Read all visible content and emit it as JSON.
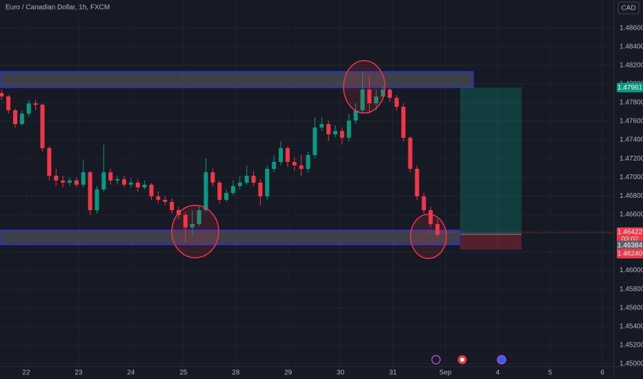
{
  "header": {
    "title": "Euro / Canadian Dollar, 1h, FXCM",
    "currency": "CAD"
  },
  "price_labels": {
    "target": "1.47961",
    "current": "1.46422",
    "countdown": "03:02",
    "bid": "1.46384",
    "stop": "1.46240"
  },
  "chart_data": {
    "type": "candlestick",
    "up_color": "#089981",
    "down_color": "#f23645",
    "grid": true,
    "x": [
      -0.47,
      -0.34,
      -0.21,
      -0.08,
      0.05,
      0.18,
      0.31,
      0.44,
      0.57,
      0.7,
      0.83,
      0.96,
      1.09,
      1.22,
      1.35,
      1.48,
      1.61,
      1.74,
      1.87,
      2,
      2.13,
      2.26,
      2.39,
      2.52,
      2.65,
      2.78,
      2.91,
      3.04,
      3.17,
      3.3,
      3.43,
      3.56,
      3.69,
      3.82,
      3.95,
      4.08,
      4.21,
      4.34,
      4.47,
      4.6,
      4.73,
      4.86,
      4.99,
      5.12,
      5.25,
      5.38,
      5.51,
      5.64,
      5.77,
      5.9,
      6.03,
      6.16,
      6.29,
      6.42,
      6.55,
      6.68,
      6.81,
      6.94,
      7.07,
      7.2,
      7.33,
      7.46,
      7.59,
      7.72,
      7.85
    ],
    "open": [
      1.47903,
      1.47866,
      1.47718,
      1.4757,
      1.47681,
      1.47792,
      1.47777,
      1.47312,
      1.47016,
      1.46965,
      1.46942,
      1.46965,
      1.4692,
      1.47053,
      1.46647,
      1.46869,
      1.47053,
      1.46965,
      1.46979,
      1.4692,
      1.46942,
      1.46891,
      1.4692,
      1.46795,
      1.46758,
      1.46736,
      1.46647,
      1.46595,
      1.46462,
      1.46499,
      1.46647,
      1.47053,
      1.46942,
      1.46758,
      1.46832,
      1.46906,
      1.46942,
      1.47016,
      1.46942,
      1.46795,
      1.4709,
      1.47164,
      1.47312,
      1.47164,
      1.47127,
      1.4709,
      1.47238,
      1.47533,
      1.4757,
      1.4746,
      1.47496,
      1.47423,
      1.47607,
      1.47718,
      1.4794,
      1.47792,
      1.47866,
      1.4794,
      1.47851,
      1.47755,
      1.47423,
      1.4709,
      1.46795,
      1.46647,
      1.46499
    ],
    "high": [
      1.4794,
      1.47881,
      1.47733,
      1.47718,
      1.47829,
      1.47829,
      1.47792,
      1.47334,
      1.4709,
      1.47016,
      1.46994,
      1.46994,
      1.47186,
      1.47068,
      1.46906,
      1.47349,
      1.4709,
      1.47016,
      1.47016,
      1.46994,
      1.46979,
      1.46965,
      1.46942,
      1.46846,
      1.46795,
      1.46773,
      1.46684,
      1.46625,
      1.46647,
      1.46699,
      1.47201,
      1.4709,
      1.46965,
      1.46869,
      1.46965,
      1.47016,
      1.47127,
      1.47068,
      1.46979,
      1.47127,
      1.47238,
      1.47386,
      1.47334,
      1.47216,
      1.47238,
      1.47275,
      1.47644,
      1.47644,
      1.47607,
      1.47556,
      1.47533,
      1.47681,
      1.47792,
      1.48124,
      1.48087,
      1.4794,
      1.47977,
      1.47954,
      1.47881,
      1.47792,
      1.47437,
      1.47127,
      1.46832,
      1.46684,
      1.46551
    ],
    "low": [
      1.47829,
      1.47681,
      1.47533,
      1.47556,
      1.47644,
      1.47718,
      1.47275,
      1.46965,
      1.46906,
      1.46891,
      1.46906,
      1.46891,
      1.46891,
      1.46595,
      1.4661,
      1.46846,
      1.4692,
      1.4692,
      1.46891,
      1.46891,
      1.46846,
      1.46869,
      1.46758,
      1.46721,
      1.46699,
      1.4661,
      1.46551,
      1.463,
      1.46366,
      1.46477,
      1.46625,
      1.46906,
      1.46721,
      1.46736,
      1.4681,
      1.46869,
      1.4692,
      1.46906,
      1.46699,
      1.46758,
      1.47053,
      1.47127,
      1.47112,
      1.47068,
      1.47016,
      1.47053,
      1.47201,
      1.47496,
      1.47386,
      1.47423,
      1.47349,
      1.47386,
      1.4757,
      1.47681,
      1.47681,
      1.47718,
      1.47829,
      1.47807,
      1.47718,
      1.47386,
      1.47053,
      1.46758,
      1.4661,
      1.46462,
      1.46366
    ],
    "close": [
      1.47866,
      1.47718,
      1.4757,
      1.47681,
      1.47792,
      1.47777,
      1.47312,
      1.47016,
      1.46965,
      1.46942,
      1.46965,
      1.4692,
      1.47053,
      1.46647,
      1.46869,
      1.47053,
      1.46965,
      1.46979,
      1.4692,
      1.46942,
      1.46891,
      1.4692,
      1.46795,
      1.46758,
      1.46736,
      1.46647,
      1.46595,
      1.46462,
      1.46499,
      1.46647,
      1.47053,
      1.46942,
      1.46758,
      1.46832,
      1.46906,
      1.46942,
      1.47016,
      1.46942,
      1.46795,
      1.4709,
      1.47164,
      1.47312,
      1.47164,
      1.47127,
      1.4709,
      1.47238,
      1.47533,
      1.4757,
      1.4746,
      1.47496,
      1.47423,
      1.47607,
      1.47718,
      1.4794,
      1.47792,
      1.47866,
      1.4794,
      1.47851,
      1.47755,
      1.47423,
      1.4709,
      1.46795,
      1.46647,
      1.46499,
      1.46384
    ],
    "ylim": [
      1.4497,
      1.489
    ],
    "yticks": [
      {
        "value": 1.45,
        "label": "1.45000"
      },
      {
        "value": 1.452,
        "label": "1.45200"
      },
      {
        "value": 1.454,
        "label": "1.45400"
      },
      {
        "value": 1.456,
        "label": "1.45600"
      },
      {
        "value": 1.458,
        "label": "1.45800"
      },
      {
        "value": 1.46,
        "label": "1.46000"
      },
      {
        "value": 1.462,
        "label": "1.46200"
      },
      {
        "value": 1.464,
        "label": "1.46400"
      },
      {
        "value": 1.466,
        "label": "1.46600"
      },
      {
        "value": 1.468,
        "label": "1.46800"
      },
      {
        "value": 1.47,
        "label": "1.47000"
      },
      {
        "value": 1.472,
        "label": "1.47200"
      },
      {
        "value": 1.474,
        "label": "1.47400"
      },
      {
        "value": 1.476,
        "label": "1.47600"
      },
      {
        "value": 1.478,
        "label": "1.47800"
      },
      {
        "value": 1.48,
        "label": "1.48000"
      },
      {
        "value": 1.482,
        "label": "1.48200"
      },
      {
        "value": 1.484,
        "label": "1.48400"
      },
      {
        "value": 1.486,
        "label": "1.48600"
      }
    ],
    "xlim": [
      -0.5,
      11.22
    ],
    "xticks": [
      {
        "value": 0,
        "label": "22"
      },
      {
        "value": 1,
        "label": "23"
      },
      {
        "value": 2,
        "label": "24"
      },
      {
        "value": 3,
        "label": "25"
      },
      {
        "value": 4,
        "label": "28"
      },
      {
        "value": 5,
        "label": "29"
      },
      {
        "value": 6,
        "label": "30"
      },
      {
        "value": 7,
        "label": "31"
      },
      {
        "value": 8,
        "label": "Sep"
      },
      {
        "value": 9,
        "label": "4"
      },
      {
        "value": 10,
        "label": "5"
      },
      {
        "value": 11,
        "label": "6"
      }
    ]
  }
}
